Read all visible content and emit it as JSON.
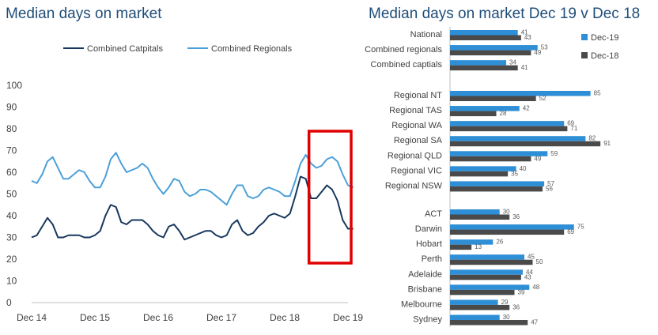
{
  "chart_data": [
    {
      "type": "line",
      "title": "Median days on market",
      "xlabel": "",
      "ylabel": "",
      "ylim": [
        0,
        100
      ],
      "y_ticks": [
        "0",
        "10",
        "20",
        "30",
        "40",
        "50",
        "60",
        "70",
        "80",
        "90",
        "100"
      ],
      "x_tick_labels": [
        "Dec 14",
        "Dec 15",
        "Dec 16",
        "Dec 17",
        "Dec 18",
        "Dec 19"
      ],
      "x_range": [
        0,
        60
      ],
      "legend_position": "top",
      "highlight_box": {
        "x_from": 52,
        "x_to": 60,
        "color": "#e00000"
      },
      "series": [
        {
          "name": "Combined Catpitals",
          "color": "#17375e",
          "values": [
            30,
            31,
            35,
            39,
            36,
            30,
            30,
            31,
            31,
            31,
            30,
            30,
            31,
            33,
            40,
            45,
            44,
            37,
            36,
            38,
            38,
            38,
            36,
            33,
            31,
            30,
            35,
            36,
            33,
            29,
            30,
            31,
            32,
            33,
            33,
            31,
            30,
            31,
            36,
            38,
            33,
            31,
            32,
            35,
            37,
            40,
            41,
            40,
            39,
            41,
            49,
            58,
            57,
            48,
            48,
            51,
            54,
            52,
            47,
            38,
            34,
            34
          ]
        },
        {
          "name": "Combined Regionals",
          "color": "#4a9fd8",
          "values": [
            56,
            55,
            59,
            65,
            67,
            62,
            57,
            57,
            59,
            61,
            60,
            56,
            53,
            53,
            58,
            66,
            69,
            64,
            60,
            61,
            62,
            64,
            62,
            57,
            53,
            50,
            53,
            57,
            56,
            51,
            49,
            50,
            52,
            52,
            51,
            49,
            47,
            45,
            50,
            54,
            54,
            49,
            48,
            49,
            52,
            53,
            52,
            51,
            49,
            49,
            56,
            64,
            68,
            64,
            62,
            63,
            66,
            67,
            65,
            59,
            54,
            53
          ]
        }
      ]
    },
    {
      "type": "bar",
      "orientation": "horizontal",
      "title": "Median days on market Dec 19 v Dec 18",
      "xlabel": "",
      "ylabel": "",
      "xlim": [
        0,
        100
      ],
      "legend_position": "right",
      "groups": [
        [
          "National",
          "Combined regionals",
          "Combined captials"
        ],
        [
          "Regional NT",
          "Regional TAS",
          "Regional WA",
          "Regional SA",
          "Regional QLD",
          "Regional VIC",
          "Regional NSW"
        ],
        [
          "ACT",
          "Darwin",
          "Hobart",
          "Perth",
          "Adelaide",
          "Brisbane",
          "Melbourne",
          "Sydney"
        ]
      ],
      "categories": [
        "National",
        "Combined regionals",
        "Combined captials",
        "Regional NT",
        "Regional TAS",
        "Regional WA",
        "Regional SA",
        "Regional QLD",
        "Regional VIC",
        "Regional NSW",
        "ACT",
        "Darwin",
        "Hobart",
        "Perth",
        "Adelaide",
        "Brisbane",
        "Melbourne",
        "Sydney"
      ],
      "series": [
        {
          "name": "Dec-19",
          "color": "#2e8fd6",
          "values": [
            41,
            53,
            34,
            85,
            42,
            69,
            82,
            59,
            40,
            57,
            30,
            75,
            26,
            45,
            44,
            48,
            29,
            30
          ]
        },
        {
          "name": "Dec-18",
          "color": "#4a4a4a",
          "values": [
            43,
            49,
            41,
            52,
            28,
            71,
            91,
            49,
            35,
            56,
            36,
            69,
            13,
            50,
            43,
            39,
            36,
            47
          ]
        }
      ]
    }
  ]
}
